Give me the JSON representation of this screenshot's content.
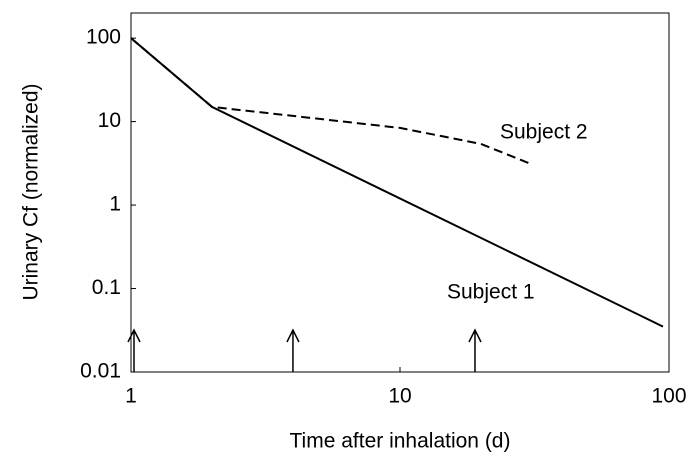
{
  "chart_data": {
    "type": "line",
    "x_label": "Time after inhalation (d)",
    "y_label": "Urinary Cf (normalized)",
    "xscale": "log",
    "yscale": "log",
    "xlim": [
      1,
      100
    ],
    "ylim": [
      0.01,
      200
    ],
    "xticks": [
      1,
      10,
      100
    ],
    "yticks": [
      0.01,
      0.1,
      1,
      10,
      100
    ],
    "series": [
      {
        "name": "Subject 1",
        "color": "#000000",
        "dashed": false,
        "x": [
          1,
          2,
          95
        ],
        "values": [
          100,
          15,
          0.035
        ]
      },
      {
        "name": "Subject 2",
        "color": "#000000",
        "dashed": true,
        "x": [
          1,
          2,
          4,
          10,
          20,
          30
        ],
        "values": [
          100,
          15,
          11.7,
          8.4,
          5.4,
          3.2
        ]
      }
    ],
    "arrows_x": [
      1,
      4,
      19
    ]
  }
}
